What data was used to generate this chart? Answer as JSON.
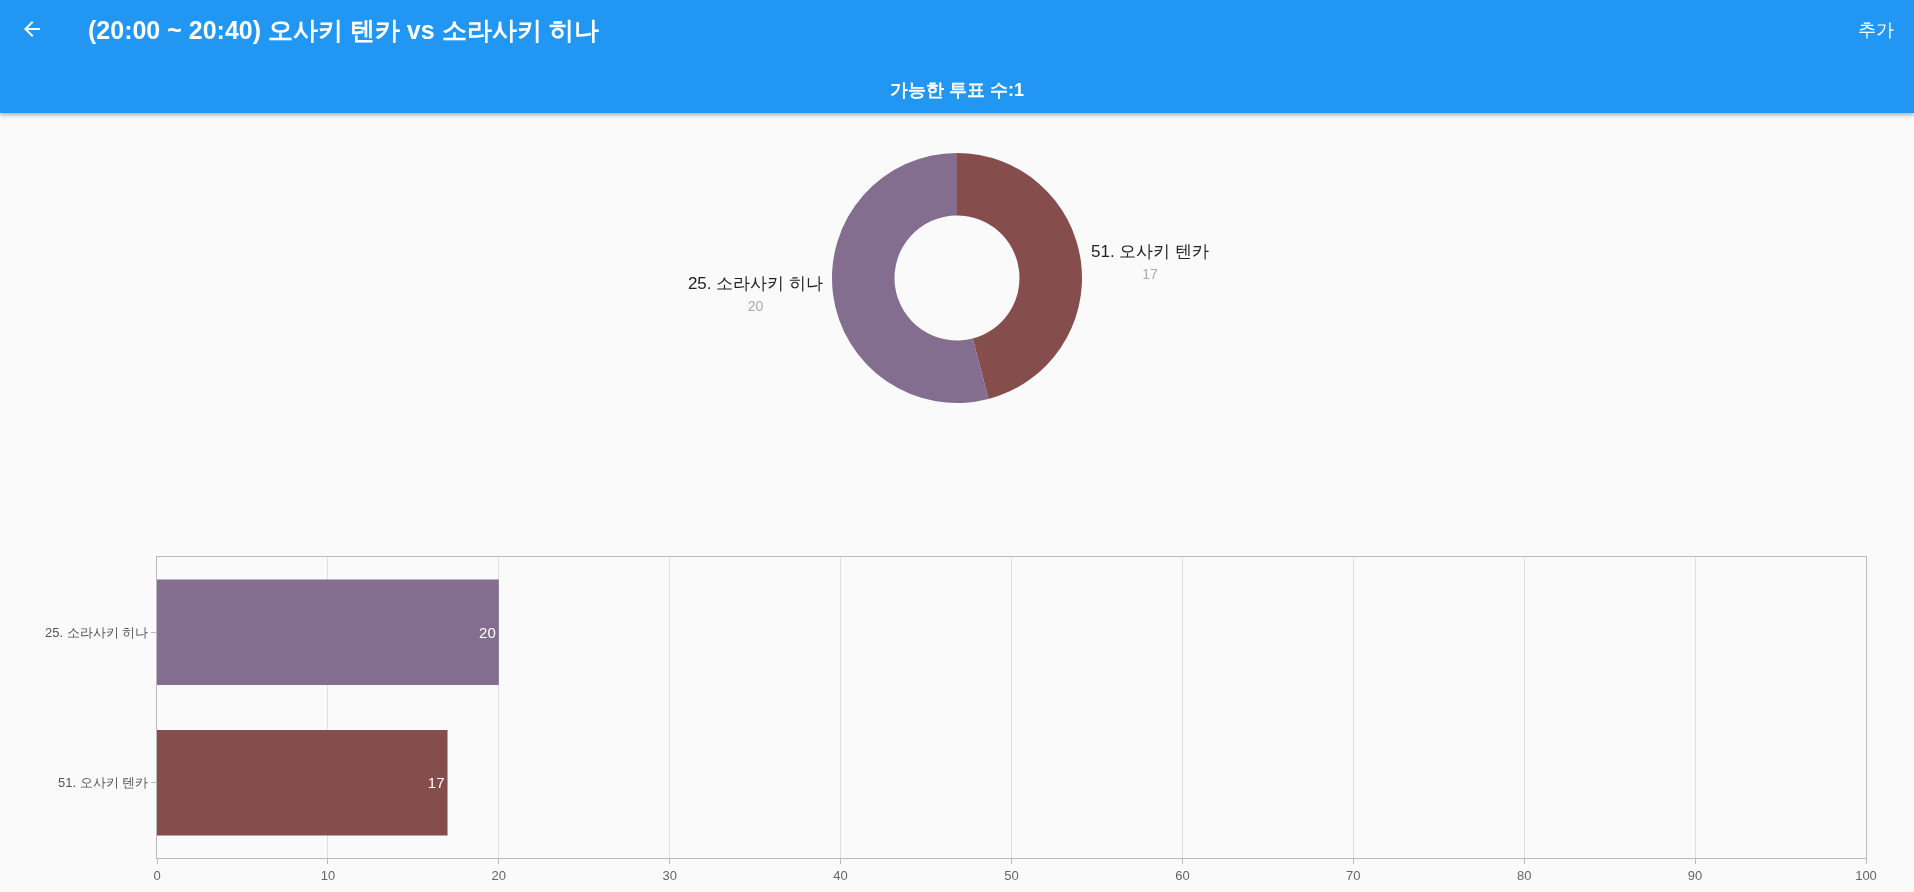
{
  "chart_data": [
    {
      "type": "donut",
      "title": "(20:00 ~ 20:40) 오사키 텐카 vs 소라사키 히나",
      "subtitle": "가능한 투표 수:1",
      "annotations": [
        "추가"
      ],
      "categories": [
        "51. 오사키 텐카",
        "25. 소라사키 히나"
      ],
      "values": [
        17,
        20
      ],
      "colors": [
        "#864d4d",
        "#836e8f"
      ],
      "data_labels": true,
      "legend": false
    },
    {
      "type": "bar",
      "orientation": "horizontal",
      "categories": [
        "25. 소라사키 히나",
        "51. 오사키 텐카"
      ],
      "values": [
        20,
        17
      ],
      "colors": [
        "#836e8f",
        "#864d4d"
      ],
      "xlim": [
        0,
        100
      ],
      "xticks": [
        0,
        10,
        20,
        30,
        40,
        50,
        60,
        70,
        80,
        90,
        100
      ],
      "grid": "x",
      "data_labels": true,
      "legend": false
    }
  ]
}
